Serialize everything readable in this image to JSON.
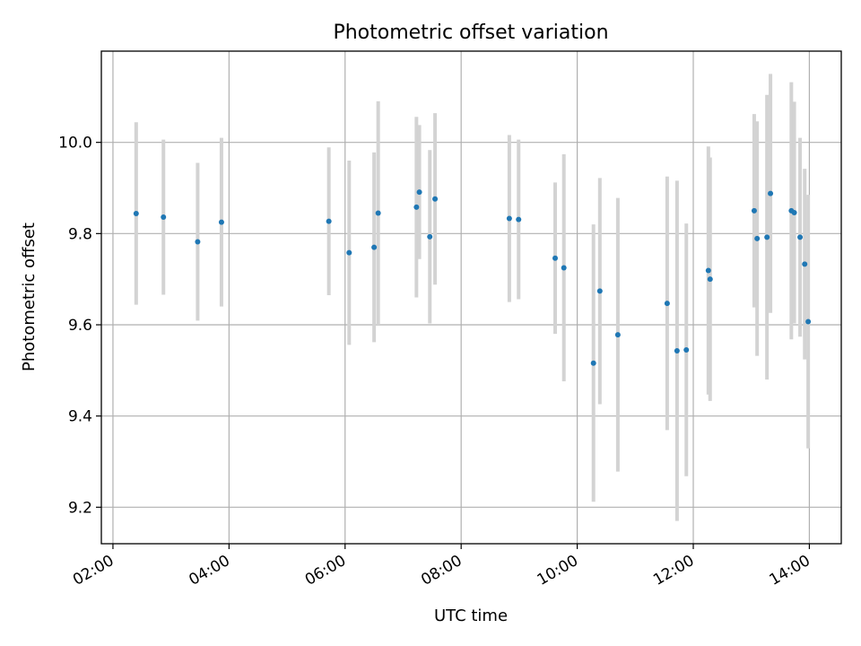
{
  "chart_data": {
    "type": "scatter",
    "title": "Photometric offset variation",
    "xlabel": "UTC time",
    "ylabel": "Photometric offset",
    "x_unit": "hours",
    "xlim": [
      1.8,
      14.55
    ],
    "ylim": [
      9.12,
      10.2
    ],
    "xticks": [
      {
        "value": 2,
        "label": "02:00"
      },
      {
        "value": 4,
        "label": "04:00"
      },
      {
        "value": 6,
        "label": "06:00"
      },
      {
        "value": 8,
        "label": "08:00"
      },
      {
        "value": 10,
        "label": "10:00"
      },
      {
        "value": 12,
        "label": "12:00"
      },
      {
        "value": 14,
        "label": "14:00"
      }
    ],
    "yticks": [
      {
        "value": 9.2,
        "label": "9.2"
      },
      {
        "value": 9.4,
        "label": "9.4"
      },
      {
        "value": 9.6,
        "label": "9.6"
      },
      {
        "value": 9.8,
        "label": "9.8"
      },
      {
        "value": 10.0,
        "label": "10.0"
      }
    ],
    "grid": true,
    "point_color": "#1f77b4",
    "errorbar_color": "#d3d3d3",
    "series": [
      {
        "points": [
          {
            "x": 2.4,
            "y": 9.844,
            "err": 0.2
          },
          {
            "x": 2.87,
            "y": 9.836,
            "err": 0.17
          },
          {
            "x": 3.46,
            "y": 9.782,
            "err": 0.173
          },
          {
            "x": 3.87,
            "y": 9.825,
            "err": 0.185
          },
          {
            "x": 5.72,
            "y": 9.827,
            "err": 0.162
          },
          {
            "x": 6.07,
            "y": 9.758,
            "err": 0.202
          },
          {
            "x": 6.5,
            "y": 9.77,
            "err": 0.208
          },
          {
            "x": 6.57,
            "y": 9.845,
            "err": 0.245
          },
          {
            "x": 7.23,
            "y": 9.858,
            "err": 0.198
          },
          {
            "x": 7.28,
            "y": 9.891,
            "err": 0.147
          },
          {
            "x": 7.46,
            "y": 9.793,
            "err": 0.19
          },
          {
            "x": 7.55,
            "y": 9.876,
            "err": 0.188
          },
          {
            "x": 8.83,
            "y": 9.833,
            "err": 0.183
          },
          {
            "x": 8.99,
            "y": 9.831,
            "err": 0.175
          },
          {
            "x": 9.62,
            "y": 9.746,
            "err": 0.166
          },
          {
            "x": 9.77,
            "y": 9.725,
            "err": 0.249
          },
          {
            "x": 10.28,
            "y": 9.516,
            "err": 0.304
          },
          {
            "x": 10.39,
            "y": 9.674,
            "err": 0.248
          },
          {
            "x": 10.7,
            "y": 9.578,
            "err": 0.3
          },
          {
            "x": 11.55,
            "y": 9.647,
            "err": 0.278
          },
          {
            "x": 11.72,
            "y": 9.543,
            "err": 0.373
          },
          {
            "x": 11.88,
            "y": 9.545,
            "err": 0.277
          },
          {
            "x": 12.26,
            "y": 9.719,
            "err": 0.272
          },
          {
            "x": 12.29,
            "y": 9.7,
            "err": 0.267
          },
          {
            "x": 13.05,
            "y": 9.85,
            "err": 0.212
          },
          {
            "x": 13.1,
            "y": 9.789,
            "err": 0.257
          },
          {
            "x": 13.27,
            "y": 9.792,
            "err": 0.312
          },
          {
            "x": 13.33,
            "y": 9.888,
            "err": 0.262
          },
          {
            "x": 13.69,
            "y": 9.85,
            "err": 0.282
          },
          {
            "x": 13.74,
            "y": 9.846,
            "err": 0.243
          },
          {
            "x": 13.84,
            "y": 9.792,
            "err": 0.218
          },
          {
            "x": 13.92,
            "y": 9.733,
            "err": 0.209
          },
          {
            "x": 13.98,
            "y": 9.607,
            "err": 0.278
          }
        ]
      }
    ]
  }
}
